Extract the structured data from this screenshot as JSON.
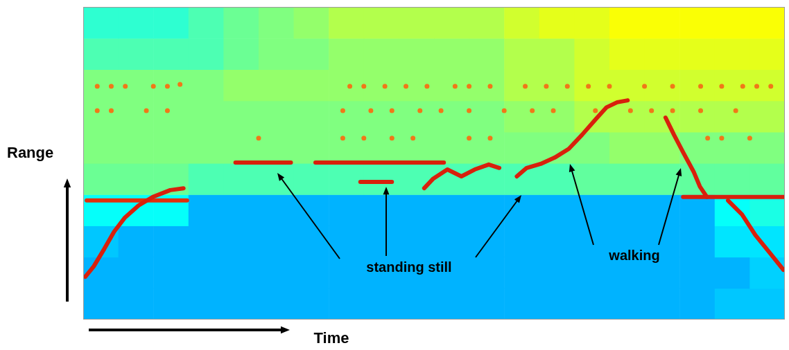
{
  "chart_data": {
    "type": "heatmap",
    "x_label": "Time",
    "y_label": "Range",
    "xlim": [
      0,
      100
    ],
    "ylim": [
      0,
      100
    ],
    "tick_labels": false,
    "grid": false,
    "cell_range": [
      0,
      1
    ],
    "cells": [
      [
        0.3,
        0.3,
        0.3,
        0.3,
        0.3,
        0.3,
        0.3,
        0.3,
        0.3,
        0.3,
        0.3,
        0.3,
        0.3,
        0.3,
        0.3,
        0.3,
        0.3,
        0.3,
        0.32,
        0.32
      ],
      [
        0.3,
        0.3,
        0.3,
        0.3,
        0.3,
        0.3,
        0.3,
        0.3,
        0.3,
        0.3,
        0.3,
        0.3,
        0.3,
        0.3,
        0.3,
        0.3,
        0.3,
        0.3,
        0.3,
        0.33
      ],
      [
        0.32,
        0.3,
        0.3,
        0.3,
        0.3,
        0.3,
        0.3,
        0.3,
        0.3,
        0.3,
        0.3,
        0.3,
        0.3,
        0.3,
        0.3,
        0.3,
        0.3,
        0.3,
        0.35,
        0.35
      ],
      [
        0.38,
        0.38,
        0.38,
        0.3,
        0.3,
        0.3,
        0.3,
        0.3,
        0.3,
        0.3,
        0.3,
        0.3,
        0.3,
        0.3,
        0.3,
        0.3,
        0.3,
        0.3,
        0.38,
        0.4
      ],
      [
        0.48,
        0.48,
        0.48,
        0.45,
        0.45,
        0.45,
        0.45,
        0.45,
        0.45,
        0.45,
        0.45,
        0.45,
        0.45,
        0.45,
        0.47,
        0.47,
        0.47,
        0.47,
        0.47,
        0.47
      ],
      [
        0.5,
        0.5,
        0.5,
        0.5,
        0.5,
        0.5,
        0.5,
        0.5,
        0.5,
        0.5,
        0.5,
        0.5,
        0.5,
        0.5,
        0.5,
        0.52,
        0.52,
        0.5,
        0.5,
        0.5
      ],
      [
        0.5,
        0.5,
        0.5,
        0.5,
        0.5,
        0.5,
        0.5,
        0.5,
        0.5,
        0.5,
        0.5,
        0.5,
        0.52,
        0.52,
        0.55,
        0.55,
        0.55,
        0.55,
        0.55,
        0.55
      ],
      [
        0.5,
        0.5,
        0.5,
        0.5,
        0.52,
        0.52,
        0.52,
        0.52,
        0.52,
        0.52,
        0.52,
        0.52,
        0.55,
        0.55,
        0.58,
        0.58,
        0.58,
        0.58,
        0.58,
        0.58
      ],
      [
        0.45,
        0.45,
        0.45,
        0.45,
        0.48,
        0.5,
        0.5,
        0.52,
        0.52,
        0.52,
        0.52,
        0.52,
        0.55,
        0.55,
        0.58,
        0.6,
        0.6,
        0.6,
        0.6,
        0.6
      ],
      [
        0.42,
        0.42,
        0.42,
        0.45,
        0.48,
        0.5,
        0.52,
        0.55,
        0.55,
        0.55,
        0.55,
        0.55,
        0.58,
        0.6,
        0.6,
        0.62,
        0.62,
        0.62,
        0.62,
        0.62
      ]
    ],
    "series": [
      {
        "type": "line",
        "color": "#d8200c",
        "line_style": "solid",
        "values": [
          [
            0.3,
            13.7
          ],
          [
            1.5,
            17.0
          ],
          [
            3.0,
            22.6
          ],
          [
            4.4,
            28.1
          ],
          [
            5.9,
            32.5
          ],
          [
            7.9,
            36.5
          ],
          [
            9.9,
            39.2
          ],
          [
            12.4,
            41.4
          ],
          [
            14.3,
            42.0
          ]
        ]
      },
      {
        "type": "line",
        "color": "#e0300c",
        "line_style": "solid",
        "values": [
          [
            0.5,
            38.1
          ],
          [
            14.8,
            38.1
          ]
        ]
      },
      {
        "type": "line",
        "color": "#d8200c",
        "line_style": "solid",
        "values": [
          [
            21.7,
            50.2
          ],
          [
            29.6,
            50.2
          ]
        ]
      },
      {
        "type": "line",
        "color": "#d8200c",
        "line_style": "solid",
        "values": [
          [
            33.1,
            50.2
          ],
          [
            51.4,
            50.2
          ]
        ]
      },
      {
        "type": "line",
        "color": "#d8200c",
        "line_style": "solid",
        "values": [
          [
            39.5,
            44.0
          ],
          [
            44.0,
            44.0
          ]
        ]
      },
      {
        "type": "line",
        "color": "#d8200c",
        "line_style": "solid",
        "values": [
          [
            48.6,
            42.0
          ],
          [
            49.9,
            45.1
          ],
          [
            51.9,
            48.0
          ],
          [
            53.9,
            45.8
          ],
          [
            55.8,
            48.0
          ],
          [
            57.8,
            49.6
          ],
          [
            59.3,
            48.5
          ]
        ]
      },
      {
        "type": "line",
        "color": "#d8200c",
        "line_style": "solid",
        "values": [
          [
            61.8,
            45.8
          ],
          [
            63.2,
            48.5
          ],
          [
            65.2,
            49.8
          ],
          [
            67.2,
            51.8
          ],
          [
            69.2,
            54.6
          ],
          [
            71.1,
            59.1
          ],
          [
            73.1,
            64.2
          ],
          [
            74.6,
            67.9
          ],
          [
            76.1,
            69.5
          ],
          [
            77.6,
            70.1
          ]
        ]
      },
      {
        "type": "line",
        "color": "#d8200c",
        "line_style": "solid",
        "values": [
          [
            83.0,
            64.6
          ],
          [
            84.2,
            59.1
          ],
          [
            85.5,
            53.5
          ],
          [
            87.0,
            47.3
          ],
          [
            87.9,
            42.5
          ],
          [
            88.9,
            39.2
          ]
        ]
      },
      {
        "type": "line",
        "color": "#d8200c",
        "line_style": "solid",
        "values": [
          [
            85.5,
            39.2
          ],
          [
            100,
            39.2
          ]
        ]
      },
      {
        "type": "line",
        "color": "#d8200c",
        "line_style": "solid",
        "values": [
          [
            91.9,
            38.1
          ],
          [
            93.9,
            33.6
          ],
          [
            95.8,
            27.0
          ],
          [
            97.8,
            21.5
          ],
          [
            99.8,
            15.9
          ]
        ]
      },
      {
        "type": "scatter",
        "color": "#f07818",
        "marker": "circle",
        "values": [
          [
            2,
            74.6
          ],
          [
            4,
            74.6
          ],
          [
            6,
            74.6
          ],
          [
            10,
            74.6
          ],
          [
            12,
            74.6
          ],
          [
            13.8,
            75.2
          ],
          [
            38,
            74.6
          ],
          [
            40,
            74.6
          ],
          [
            43,
            74.6
          ],
          [
            46,
            74.6
          ],
          [
            49,
            74.6
          ],
          [
            53,
            74.6
          ],
          [
            55,
            74.6
          ],
          [
            58,
            74.6
          ],
          [
            63,
            74.6
          ],
          [
            66,
            74.6
          ],
          [
            69,
            74.6
          ],
          [
            72,
            74.6
          ],
          [
            75,
            74.6
          ],
          [
            80,
            74.6
          ],
          [
            84,
            74.6
          ],
          [
            88,
            74.6
          ],
          [
            91,
            74.6
          ],
          [
            94,
            74.6
          ],
          [
            96,
            74.6
          ],
          [
            98,
            74.6
          ]
        ]
      },
      {
        "type": "scatter",
        "color": "#f07818",
        "marker": "circle",
        "values": [
          [
            2,
            66.8
          ],
          [
            4,
            66.8
          ],
          [
            9,
            66.8
          ],
          [
            12,
            66.8
          ],
          [
            37,
            66.8
          ],
          [
            41,
            66.8
          ],
          [
            44,
            66.8
          ],
          [
            48,
            66.8
          ],
          [
            51,
            66.8
          ],
          [
            55,
            66.8
          ],
          [
            60,
            66.8
          ],
          [
            64,
            66.8
          ],
          [
            67,
            66.8
          ],
          [
            73,
            66.8
          ],
          [
            78,
            66.8
          ],
          [
            81,
            66.8
          ],
          [
            84,
            66.8
          ],
          [
            88,
            66.8
          ],
          [
            93,
            66.8
          ]
        ]
      },
      {
        "type": "scatter",
        "color": "#f07818",
        "marker": "circle",
        "values": [
          [
            25,
            58.0
          ],
          [
            37,
            58.0
          ],
          [
            40,
            58.0
          ],
          [
            44,
            58.0
          ],
          [
            47,
            58.0
          ],
          [
            55,
            58.0
          ],
          [
            58,
            58.0
          ],
          [
            89,
            58.0
          ],
          [
            91,
            58.0
          ],
          [
            95,
            58.0
          ]
        ]
      }
    ],
    "annotations": [
      {
        "text": "standing still"
      },
      {
        "text": "walking"
      }
    ]
  }
}
